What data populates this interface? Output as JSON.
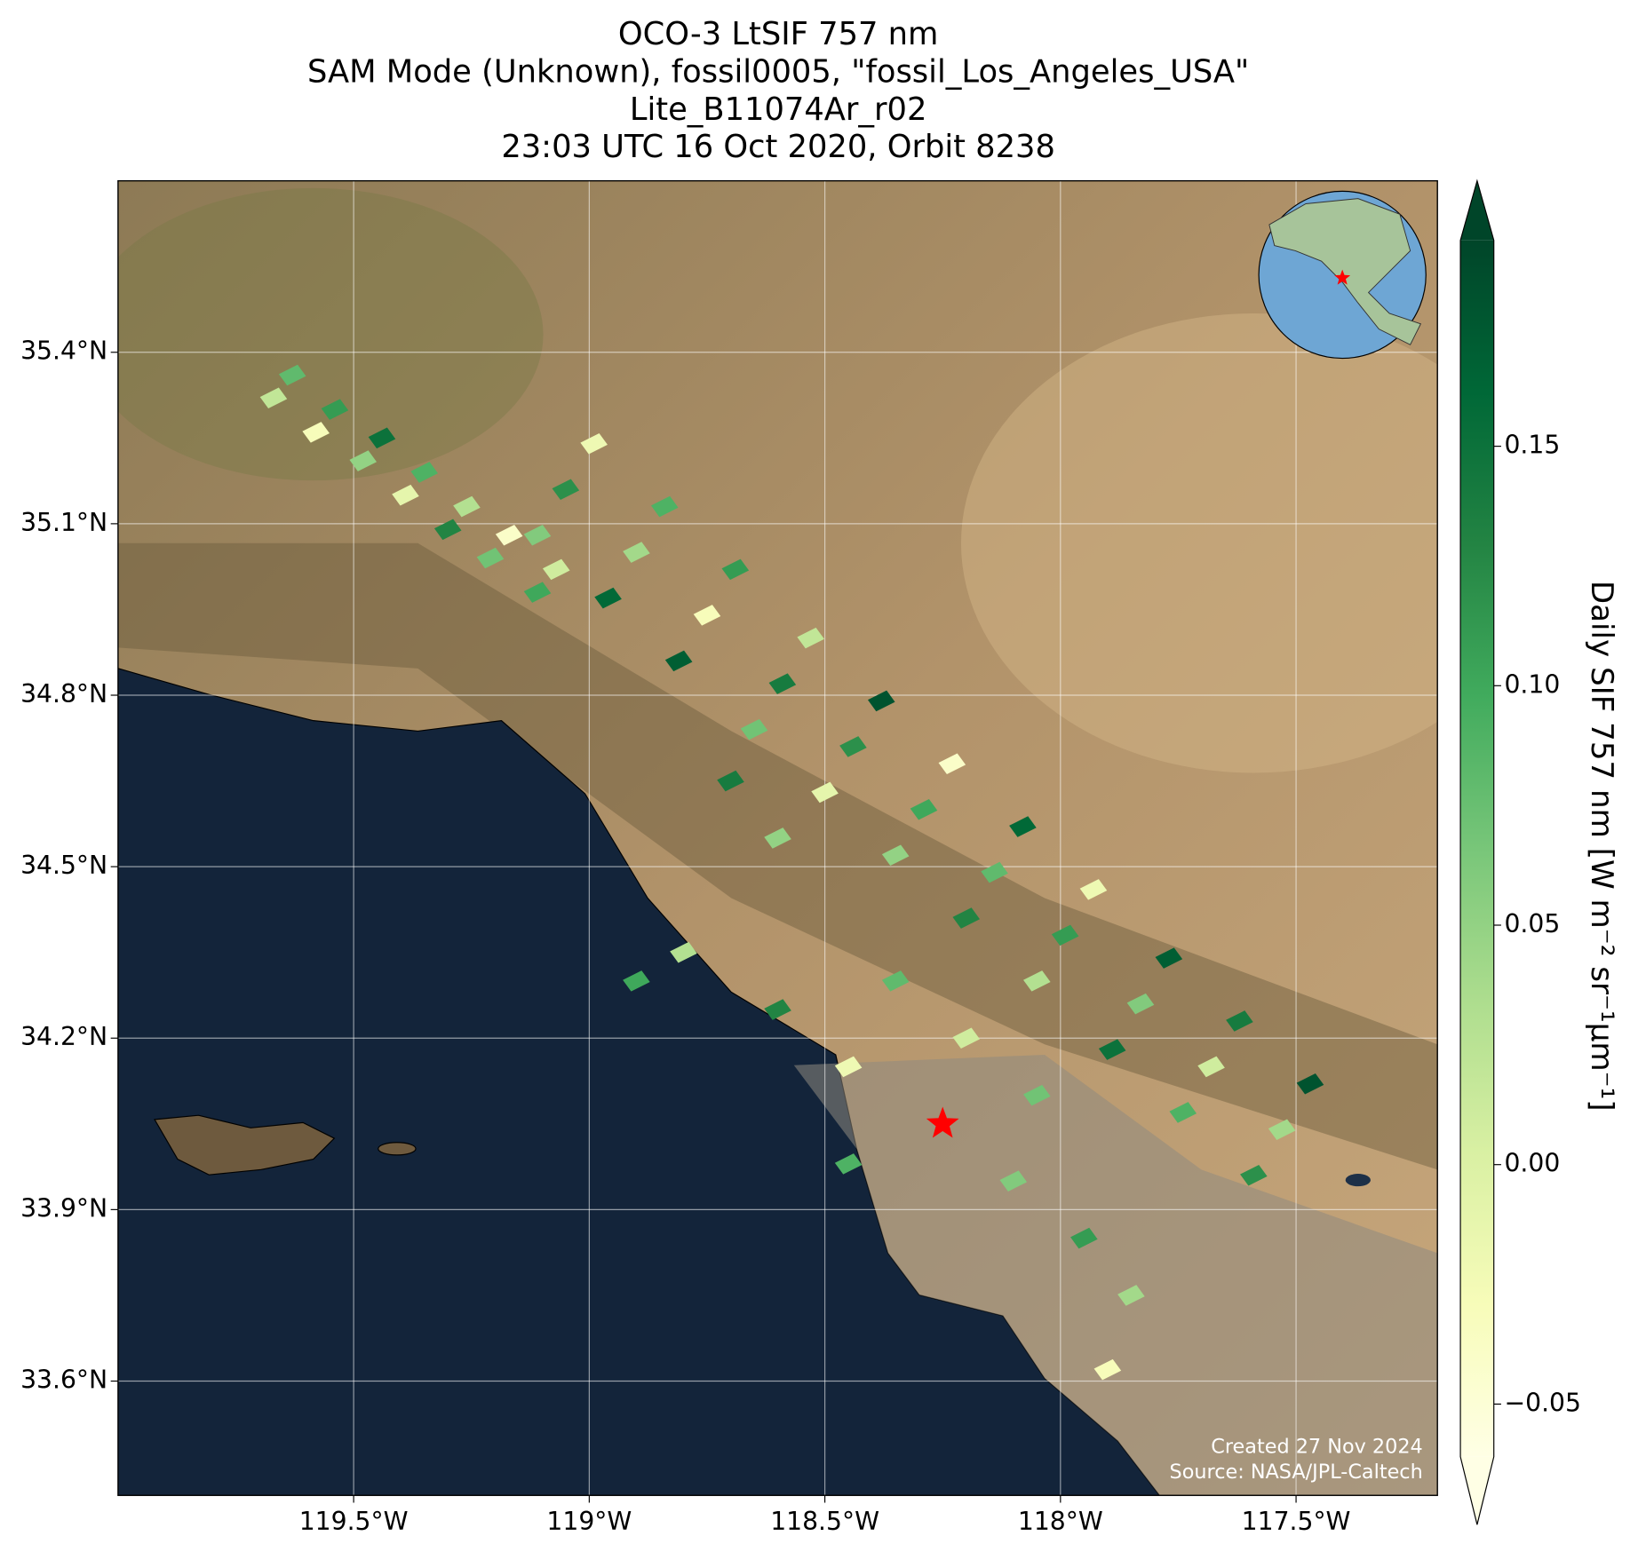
{
  "chart_data": {
    "type": "map",
    "title": [
      "OCO-3 LtSIF 757 nm",
      "SAM Mode (Unknown), fossil0005, \"fossil_Los_Angeles_USA\"",
      "Lite_B11074Ar_r02",
      "23:03 UTC 16 Oct 2020, Orbit 8238"
    ],
    "xlim": [
      -120.0,
      -117.2
    ],
    "ylim": [
      33.4,
      35.7
    ],
    "xticks": [
      {
        "value": -119.5,
        "label": "119.5°W"
      },
      {
        "value": -119.0,
        "label": "119°W"
      },
      {
        "value": -118.5,
        "label": "118.5°W"
      },
      {
        "value": -118.0,
        "label": "118°W"
      },
      {
        "value": -117.5,
        "label": "117.5°W"
      }
    ],
    "yticks": [
      {
        "value": 35.4,
        "label": "35.4°N"
      },
      {
        "value": 35.1,
        "label": "35.1°N"
      },
      {
        "value": 34.8,
        "label": "34.8°N"
      },
      {
        "value": 34.5,
        "label": "34.5°N"
      },
      {
        "value": 34.2,
        "label": "34.2°N"
      },
      {
        "value": 33.9,
        "label": "33.9°N"
      },
      {
        "value": 33.6,
        "label": "33.6°N"
      }
    ],
    "grid": true,
    "target": {
      "lon": -118.25,
      "lat": 34.05,
      "color": "#ff0000"
    },
    "colorbar": {
      "label": "Daily SIF 757 nm [W m⁻² sr⁻¹μm⁻¹]",
      "clim": [
        -0.061,
        0.193
      ],
      "ticks": [
        {
          "value": -0.05,
          "label": "−0.05"
        },
        {
          "value": 0.0,
          "label": "0.00"
        },
        0.05,
        {
          "value": 0.1,
          "label": "0.10"
        },
        0.15
      ],
      "cmap": [
        "#ffffe5",
        "#f7fcb9",
        "#d9f0a3",
        "#addd8e",
        "#78c679",
        "#41ab5d",
        "#238443",
        "#006837",
        "#004529"
      ]
    },
    "footprints": {
      "lon": [
        -119.67,
        -119.63,
        -119.58,
        -119.54,
        -119.48,
        -119.44,
        -119.39,
        -119.35,
        -119.3,
        -119.26,
        -119.21,
        -119.17,
        -119.11,
        -119.07,
        -119.11,
        -119.05,
        -118.99,
        -118.96,
        -118.9,
        -118.84,
        -118.81,
        -118.75,
        -118.69,
        -118.65,
        -118.59,
        -118.53,
        -118.5,
        -118.44,
        -118.38,
        -118.35,
        -118.29,
        -118.23,
        -118.2,
        -118.14,
        -118.08,
        -118.05,
        -117.99,
        -117.93,
        -117.89,
        -117.83,
        -117.77,
        -117.74,
        -117.68,
        -117.62,
        -117.59,
        -117.53,
        -117.47,
        -118.35,
        -118.6,
        -118.8,
        -118.9,
        -118.45,
        -118.1,
        -117.95,
        -117.85,
        -117.9,
        -118.45,
        -118.6,
        -118.7,
        -118.2,
        -118.05
      ],
      "lat": [
        35.32,
        35.36,
        35.26,
        35.3,
        35.21,
        35.25,
        35.15,
        35.19,
        35.09,
        35.13,
        35.04,
        35.08,
        34.98,
        35.02,
        35.08,
        35.16,
        35.24,
        34.97,
        35.05,
        35.13,
        34.86,
        34.94,
        35.02,
        34.74,
        34.82,
        34.9,
        34.63,
        34.71,
        34.79,
        34.52,
        34.6,
        34.68,
        34.41,
        34.49,
        34.57,
        34.3,
        34.38,
        34.46,
        34.18,
        34.26,
        34.34,
        34.07,
        34.15,
        34.23,
        33.96,
        34.04,
        34.12,
        34.3,
        34.25,
        34.35,
        34.3,
        34.15,
        33.95,
        33.85,
        33.75,
        33.62,
        33.98,
        34.55,
        34.65,
        34.2,
        34.1
      ],
      "sif": [
        0.02,
        0.08,
        -0.03,
        0.11,
        0.05,
        0.15,
        -0.01,
        0.09,
        0.13,
        0.03,
        0.07,
        -0.04,
        0.1,
        0.01,
        0.06,
        0.12,
        -0.02,
        0.16,
        0.04,
        0.09,
        0.17,
        -0.03,
        0.11,
        0.07,
        0.14,
        0.02,
        -0.01,
        0.12,
        0.18,
        0.05,
        0.1,
        -0.04,
        0.13,
        0.08,
        0.16,
        0.03,
        0.11,
        -0.02,
        0.15,
        0.06,
        0.17,
        0.09,
        0.01,
        0.14,
        0.12,
        0.04,
        0.18,
        0.08,
        0.13,
        0.03,
        0.1,
        -0.02,
        0.06,
        0.11,
        0.04,
        -0.03,
        0.09,
        0.05,
        0.14,
        0.01,
        0.07
      ]
    },
    "annotations": [
      "Created 27 Nov 2024",
      "Source: NASA/JPL-Caltech"
    ]
  }
}
